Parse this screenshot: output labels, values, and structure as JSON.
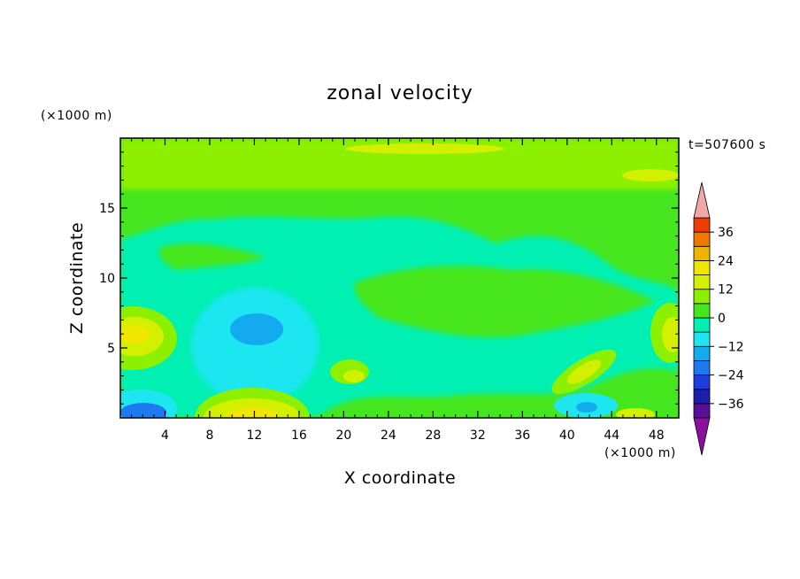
{
  "chart_data": {
    "type": "heatmap",
    "title": "zonal velocity",
    "xlabel": "X coordinate",
    "ylabel": "Z coordinate",
    "x_unit": "(×1000 m)",
    "y_unit": "(×1000 m)",
    "time_label": "t=507600 s",
    "xlim": [
      0,
      50
    ],
    "ylim": [
      0,
      20
    ],
    "x_ticks": [
      "4",
      "8",
      "12",
      "16",
      "20",
      "24",
      "28",
      "32",
      "36",
      "40",
      "44",
      "48"
    ],
    "x_tick_values": [
      4,
      8,
      12,
      16,
      20,
      24,
      28,
      32,
      36,
      40,
      44,
      48
    ],
    "y_ticks": [
      "5",
      "10",
      "15"
    ],
    "y_tick_values": [
      5,
      10,
      15
    ],
    "colorbar": {
      "levels": [
        -42,
        -36,
        -30,
        -24,
        -18,
        -12,
        -6,
        0,
        6,
        12,
        18,
        24,
        30,
        36,
        42
      ],
      "tick_labels": [
        "36",
        "24",
        "12",
        "0",
        "−12",
        "−24",
        "−36"
      ],
      "tick_values": [
        36,
        24,
        12,
        0,
        -12,
        -24,
        -36
      ],
      "over_color": "#f2a8a8",
      "under_color": "#8c0fa0",
      "colors": [
        "#5a0f96",
        "#1e1eaa",
        "#1e3cdc",
        "#1e78f0",
        "#14aaf0",
        "#1ee6f0",
        "#00f0b4",
        "#46e61e",
        "#8cf000",
        "#d2f000",
        "#f0e600",
        "#f0b400",
        "#f07800",
        "#f03c00"
      ]
    },
    "features": [
      {
        "kind": "jet-core",
        "x": 11.5,
        "z": 0.5,
        "value": 18
      },
      {
        "kind": "jet-core",
        "x": 1.5,
        "z": 6,
        "value": 16
      },
      {
        "kind": "jet-core",
        "x": 48,
        "z": 6,
        "value": 12
      },
      {
        "kind": "jet-core",
        "x": 42.5,
        "z": 3.5,
        "value": 12
      },
      {
        "kind": "jet-core",
        "x": 19.5,
        "z": 3.5,
        "value": 8
      },
      {
        "kind": "minimum",
        "x": 12,
        "z": 6.5,
        "value": -18
      },
      {
        "kind": "minimum",
        "x": 2.5,
        "z": 0.5,
        "value": -24
      },
      {
        "kind": "minimum",
        "x": 42,
        "z": 1,
        "value": -18
      },
      {
        "kind": "upper-band",
        "z": 17.5,
        "value": 6
      }
    ]
  }
}
